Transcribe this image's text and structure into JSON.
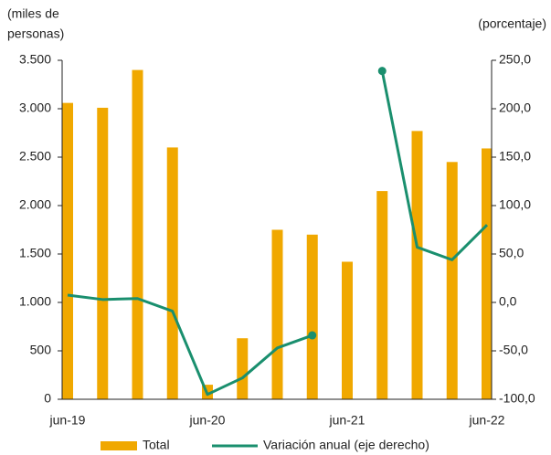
{
  "chart_data": {
    "type": "bar",
    "categories": [
      "jun-19",
      null,
      null,
      null,
      "jun-20",
      null,
      null,
      null,
      "jun-21",
      null,
      null,
      null,
      "jun-22"
    ],
    "ylabel": [
      "(miles de",
      "personas)"
    ],
    "y2label": "(porcentaje)",
    "ylim": [
      0,
      3500
    ],
    "yticks": [
      0,
      500,
      {
        "value": 1000,
        "label": "1.000"
      },
      {
        "value": 1500,
        "label": "1.500"
      },
      {
        "value": 2000,
        "label": "2.000"
      },
      {
        "value": 2500,
        "label": "2.500"
      },
      {
        "value": 3000,
        "label": "3.000"
      },
      {
        "value": 3500,
        "label": "3.500"
      }
    ],
    "y2lim": [
      -100,
      250
    ],
    "y2ticks": [
      {
        "value": -100,
        "label": "-100,0"
      },
      {
        "value": -50,
        "label": "-50,0"
      },
      {
        "value": 0,
        "label": "0,0"
      },
      {
        "value": 50,
        "label": "50,0"
      },
      {
        "value": 100,
        "label": "100,0"
      },
      {
        "value": 150,
        "label": "150,0"
      },
      {
        "value": 200,
        "label": "200,0"
      },
      {
        "value": 250,
        "label": "250,0"
      }
    ],
    "series": [
      {
        "name": "Total",
        "type": "bar",
        "color": "#f0a800",
        "values": [
          3060,
          3010,
          3400,
          2600,
          150,
          630,
          1750,
          1700,
          1420,
          2150,
          2770,
          2450,
          2590
        ]
      },
      {
        "name": "Variación anual (eje derecho)",
        "type": "line",
        "axis": "y2",
        "color": "#1a8f6e",
        "values": [
          7.5,
          3,
          4,
          -9,
          -95,
          -78,
          -47,
          -34,
          null,
          239,
          57,
          44,
          80
        ]
      }
    ]
  }
}
